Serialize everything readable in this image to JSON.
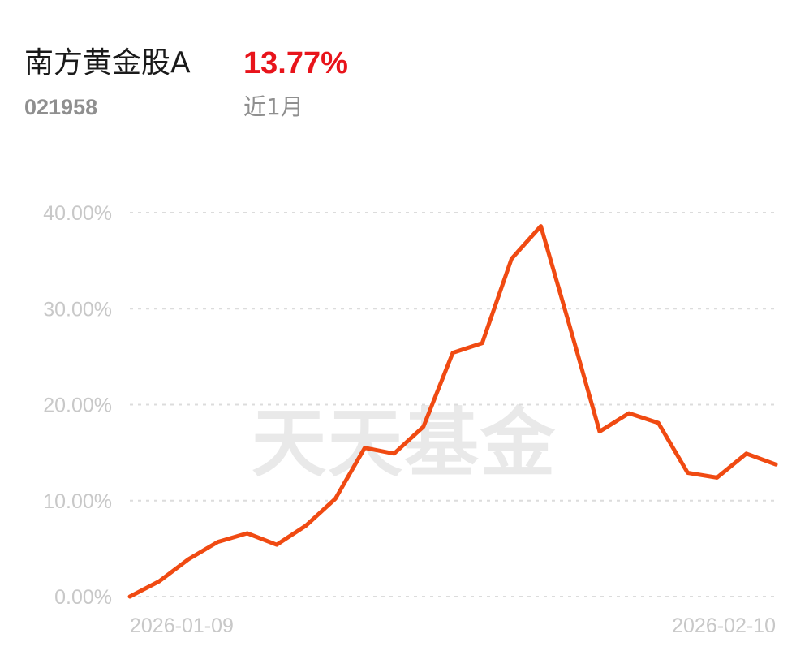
{
  "header": {
    "fund_name": "南方黄金股A",
    "return_value": "13.77%",
    "fund_code": "021958",
    "period_label": "近1月"
  },
  "watermark": "天天基金",
  "colors": {
    "line": "#f04a12",
    "return_positive": "#e8141b",
    "label_gray": "#8f8f8f",
    "tick_gray": "#c8c8c8",
    "grid": "#dcdcdc"
  },
  "chart_data": {
    "type": "line",
    "title": "",
    "xlabel": "",
    "ylabel": "",
    "ylim": [
      0,
      40
    ],
    "yticks": [
      0,
      10,
      20,
      30,
      40
    ],
    "ytick_labels": [
      "0.00%",
      "10.00%",
      "20.00%",
      "30.00%",
      "40.00%"
    ],
    "x_start_label": "2026-01-09",
    "x_end_label": "2026-02-10",
    "grid": true,
    "legend": "none",
    "series": [
      {
        "values": [
          0.0,
          1.6,
          3.9,
          5.7,
          6.6,
          5.4,
          7.4,
          10.2,
          15.5,
          14.9,
          17.7,
          25.4,
          26.4,
          35.2,
          38.6,
          28.0,
          17.2,
          19.1,
          18.1,
          12.9,
          12.4,
          14.9,
          13.77
        ]
      }
    ]
  }
}
